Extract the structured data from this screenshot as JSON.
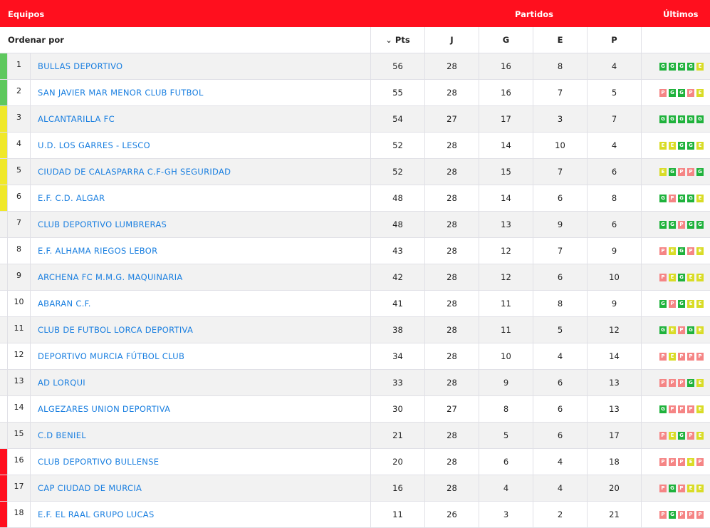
{
  "header": {
    "teams": "Equipos",
    "matches": "Partidos",
    "last": "Últimos"
  },
  "columns": {
    "sort_by": "Ordenar por",
    "pts": "Pts",
    "j": "J",
    "g": "G",
    "e": "E",
    "p": "P"
  },
  "colors": {
    "promotion": "#5ec85e",
    "playoff": "#f0e82a",
    "relegation": "#ff0f1e",
    "win": "#1fb23c",
    "draw": "#d9dc26",
    "loss": "#f58585",
    "link": "#1a7fe0"
  },
  "rows": [
    {
      "pos": "1",
      "team": "BULLAS DEPORTIVO",
      "pts": "56",
      "j": "28",
      "g": "16",
      "e": "8",
      "p": "4",
      "zone": "promotion",
      "form": [
        "G",
        "G",
        "G",
        "G",
        "E"
      ]
    },
    {
      "pos": "2",
      "team": "SAN JAVIER MAR MENOR CLUB FUTBOL",
      "pts": "55",
      "j": "28",
      "g": "16",
      "e": "7",
      "p": "5",
      "zone": "promotion",
      "form": [
        "P",
        "G",
        "G",
        "P",
        "E"
      ]
    },
    {
      "pos": "3",
      "team": "ALCANTARILLA FC",
      "pts": "54",
      "j": "27",
      "g": "17",
      "e": "3",
      "p": "7",
      "zone": "playoff",
      "form": [
        "G",
        "G",
        "G",
        "G",
        "G"
      ]
    },
    {
      "pos": "4",
      "team": "U.D. LOS GARRES - LESCO",
      "pts": "52",
      "j": "28",
      "g": "14",
      "e": "10",
      "p": "4",
      "zone": "playoff",
      "form": [
        "E",
        "E",
        "G",
        "G",
        "E"
      ]
    },
    {
      "pos": "5",
      "team": "CIUDAD DE CALASPARRA C.F-GH SEGURIDAD",
      "pts": "52",
      "j": "28",
      "g": "15",
      "e": "7",
      "p": "6",
      "zone": "playoff",
      "form": [
        "E",
        "G",
        "P",
        "P",
        "G"
      ]
    },
    {
      "pos": "6",
      "team": "E.F. C.D. ALGAR",
      "pts": "48",
      "j": "28",
      "g": "14",
      "e": "6",
      "p": "8",
      "zone": "playoff",
      "form": [
        "G",
        "P",
        "G",
        "G",
        "E"
      ]
    },
    {
      "pos": "7",
      "team": "CLUB DEPORTIVO LUMBRERAS",
      "pts": "48",
      "j": "28",
      "g": "13",
      "e": "9",
      "p": "6",
      "zone": "",
      "form": [
        "G",
        "G",
        "P",
        "G",
        "G"
      ]
    },
    {
      "pos": "8",
      "team": "E.F. ALHAMA RIEGOS LEBOR",
      "pts": "43",
      "j": "28",
      "g": "12",
      "e": "7",
      "p": "9",
      "zone": "",
      "form": [
        "P",
        "E",
        "G",
        "P",
        "E"
      ]
    },
    {
      "pos": "9",
      "team": "ARCHENA FC M.M.G. MAQUINARIA",
      "pts": "42",
      "j": "28",
      "g": "12",
      "e": "6",
      "p": "10",
      "zone": "",
      "form": [
        "P",
        "E",
        "G",
        "E",
        "E"
      ]
    },
    {
      "pos": "10",
      "team": "ABARAN C.F.",
      "pts": "41",
      "j": "28",
      "g": "11",
      "e": "8",
      "p": "9",
      "zone": "",
      "form": [
        "G",
        "P",
        "G",
        "E",
        "E"
      ]
    },
    {
      "pos": "11",
      "team": "CLUB DE FUTBOL LORCA DEPORTIVA",
      "pts": "38",
      "j": "28",
      "g": "11",
      "e": "5",
      "p": "12",
      "zone": "",
      "form": [
        "G",
        "E",
        "P",
        "G",
        "E"
      ]
    },
    {
      "pos": "12",
      "team": "DEPORTIVO MURCIA FÚTBOL CLUB",
      "pts": "34",
      "j": "28",
      "g": "10",
      "e": "4",
      "p": "14",
      "zone": "",
      "form": [
        "P",
        "E",
        "P",
        "P",
        "P"
      ]
    },
    {
      "pos": "13",
      "team": "AD LORQUI",
      "pts": "33",
      "j": "28",
      "g": "9",
      "e": "6",
      "p": "13",
      "zone": "",
      "form": [
        "P",
        "P",
        "P",
        "G",
        "E"
      ]
    },
    {
      "pos": "14",
      "team": "ALGEZARES UNION DEPORTIVA",
      "pts": "30",
      "j": "27",
      "g": "8",
      "e": "6",
      "p": "13",
      "zone": "",
      "form": [
        "G",
        "P",
        "P",
        "P",
        "E"
      ]
    },
    {
      "pos": "15",
      "team": "C.D BENIEL",
      "pts": "21",
      "j": "28",
      "g": "5",
      "e": "6",
      "p": "17",
      "zone": "",
      "form": [
        "P",
        "E",
        "G",
        "P",
        "E"
      ]
    },
    {
      "pos": "16",
      "team": "CLUB DEPORTIVO BULLENSE",
      "pts": "20",
      "j": "28",
      "g": "6",
      "e": "4",
      "p": "18",
      "zone": "relegation",
      "form": [
        "P",
        "P",
        "P",
        "E",
        "P"
      ]
    },
    {
      "pos": "17",
      "team": "CAP CIUDAD DE MURCIA",
      "pts": "16",
      "j": "28",
      "g": "4",
      "e": "4",
      "p": "20",
      "zone": "relegation",
      "form": [
        "P",
        "G",
        "P",
        "E",
        "E"
      ]
    },
    {
      "pos": "18",
      "team": "E.F. EL RAAL GRUPO LUCAS",
      "pts": "11",
      "j": "26",
      "g": "3",
      "e": "2",
      "p": "21",
      "zone": "relegation",
      "form": [
        "P",
        "G",
        "P",
        "P",
        "P"
      ]
    }
  ]
}
